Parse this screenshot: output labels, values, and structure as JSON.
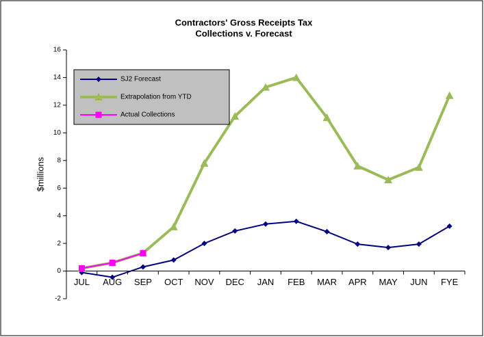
{
  "chart_data": {
    "type": "line",
    "title": [
      "Contractors' Gross Receipts Tax",
      "Collections v. Forecast"
    ],
    "ylabel": "$millions",
    "categories": [
      "JUL",
      "AUG",
      "SEP",
      "OCT",
      "NOV",
      "DEC",
      "JAN",
      "FEB",
      "MAR",
      "APR",
      "MAY",
      "JUN",
      "FYE"
    ],
    "series": [
      {
        "name": "SJ2 Forecast",
        "color": "#000080",
        "marker": "diamond",
        "values": [
          -0.1,
          -0.45,
          0.3,
          0.8,
          2.0,
          2.9,
          3.4,
          3.6,
          2.85,
          1.95,
          1.7,
          1.95,
          3.25
        ]
      },
      {
        "name": "Extrapolation from YTD",
        "color": "#9bbb59",
        "marker": "triangle",
        "values": [
          0.2,
          0.6,
          1.3,
          3.2,
          7.8,
          11.2,
          13.3,
          14.0,
          11.1,
          7.6,
          6.6,
          7.5,
          12.7
        ]
      },
      {
        "name": "Actual Collections",
        "color": "#ff00ff",
        "marker": "square",
        "values": [
          0.2,
          0.6,
          1.3,
          null,
          null,
          null,
          null,
          null,
          null,
          null,
          null,
          null,
          null
        ]
      }
    ],
    "ylim": [
      -2,
      16
    ],
    "yticks": [
      -2,
      0,
      2,
      4,
      6,
      8,
      10,
      12,
      14,
      16
    ],
    "legend": "upper left",
    "grid": false
  }
}
